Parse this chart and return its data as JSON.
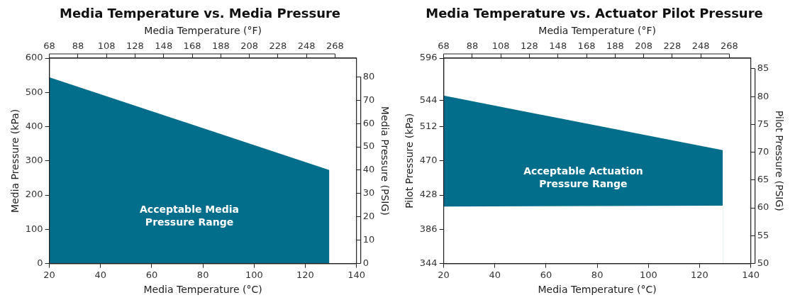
{
  "chart_data": [
    {
      "type": "area",
      "title": "Media Temperature vs. Media Pressure",
      "xlabel": "Media Temperature (°C)",
      "x2label": "Media Temperature (°F)",
      "ylabel": "Media Pressure (kPa)",
      "y2label": "Media Pressure (PSIG)",
      "x": [
        20,
        129.4
      ],
      "series": [
        {
          "color": "#026e8c",
          "values": [
            544,
            273
          ]
        }
      ],
      "xlim": [
        20,
        140
      ],
      "xticks": [
        20,
        40,
        60,
        80,
        100,
        120,
        140
      ],
      "x2lim": [
        68,
        283
      ],
      "x2ticks": [
        68,
        88,
        108,
        128,
        148,
        168,
        188,
        208,
        228,
        248,
        268
      ],
      "ylim": [
        0,
        600
      ],
      "yticks": [
        0,
        100,
        200,
        300,
        400,
        500,
        600
      ],
      "y2lim": [
        0,
        88
      ],
      "y2ticks": [
        0,
        10,
        20,
        30,
        40,
        50,
        60,
        70,
        80
      ],
      "annotations": [
        "Acceptable Media Pressure Range"
      ]
    },
    {
      "type": "area",
      "title": "Media Temperature vs. Actuator Pilot Pressure",
      "xlabel": "Media Temperature (°C)",
      "x2label": "Media Temperature (°F)",
      "ylabel": "Pilot Pressure (kPa)",
      "y2label": "Pilot Pressure (PSIG)",
      "x": [
        20,
        129.1
      ],
      "series": [
        {
          "color": "#026e8c",
          "values": [
            550,
            483
          ]
        },
        {
          "color": "#ffffff",
          "values": [
            414,
            415
          ]
        }
      ],
      "xlim": [
        20,
        140
      ],
      "xticks": [
        20,
        40,
        60,
        80,
        100,
        120,
        140
      ],
      "x2lim": [
        68,
        283
      ],
      "x2ticks": [
        68,
        88,
        108,
        128,
        148,
        168,
        188,
        208,
        228,
        248,
        268
      ],
      "ylim": [
        344,
        596
      ],
      "yticks": [
        344,
        386,
        428,
        470,
        512,
        544,
        596
      ],
      "y2lim": [
        50,
        86.9
      ],
      "y2ticks": [
        50,
        55,
        60,
        65,
        70,
        75,
        80,
        85
      ],
      "annotations": [
        "Acceptable Actuation Pressure Range"
      ]
    }
  ]
}
